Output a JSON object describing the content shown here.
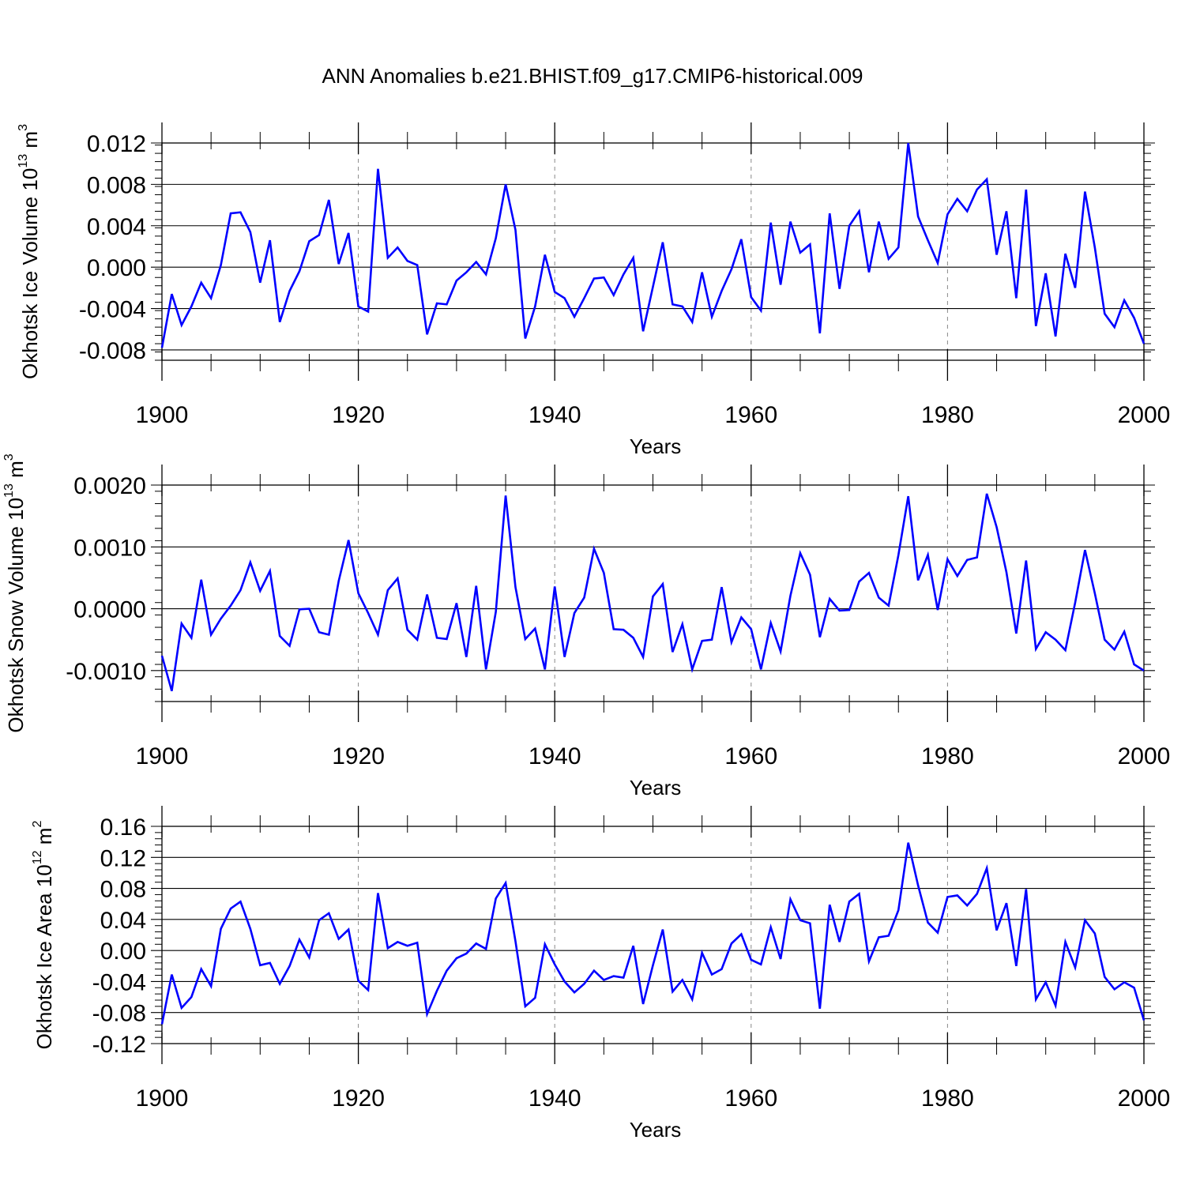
{
  "title": "ANN Anomalies b.e21.BHIST.f09_g17.CMIP6-historical.009",
  "line_color": "#0000ff",
  "chart_data": [
    {
      "type": "line",
      "ylabel": "Okhotsk Ice Volume 10",
      "ylabel_sup": "13",
      "ylabel_unit": "m",
      "ylabel_unit_sup": "3",
      "xlabel": "Years",
      "xlim": [
        1900,
        2000
      ],
      "ylim": [
        -0.009,
        0.012
      ],
      "xticks": [
        1900,
        1920,
        1940,
        1960,
        1980,
        2000
      ],
      "yticks": [
        -0.008,
        -0.004,
        0.0,
        0.004,
        0.008,
        0.012
      ],
      "ytick_labels": [
        "-0.008",
        "-0.004",
        "0.000",
        "0.004",
        "0.008",
        "0.012"
      ],
      "x_start": 1900,
      "values": [
        -0.0078,
        -0.0026,
        -0.0056,
        -0.0038,
        -0.0015,
        -0.003,
        0.0002,
        0.0052,
        0.0053,
        0.0034,
        -0.0015,
        0.0026,
        -0.0053,
        -0.0023,
        -0.0004,
        0.0025,
        0.0031,
        0.0065,
        0.0003,
        0.0033,
        -0.0038,
        -0.0043,
        0.0095,
        0.0009,
        0.0019,
        0.0006,
        0.0002,
        -0.0065,
        -0.0035,
        -0.0036,
        -0.0013,
        -0.0005,
        0.0005,
        -0.0007,
        0.0028,
        0.008,
        0.0036,
        -0.0069,
        -0.0038,
        0.0012,
        -0.0024,
        -0.003,
        -0.0048,
        -0.003,
        -0.0011,
        -0.001,
        -0.0027,
        -0.0007,
        0.0009,
        -0.0062,
        -0.0019,
        0.0024,
        -0.0036,
        -0.0038,
        -0.0053,
        -0.0005,
        -0.0048,
        -0.0023,
        -0.0002,
        0.0027,
        -0.0029,
        -0.0042,
        0.0043,
        -0.0017,
        0.0044,
        0.0014,
        0.0022,
        -0.0064,
        0.0052,
        -0.0021,
        0.004,
        0.0054,
        -0.0005,
        0.0044,
        0.0008,
        0.0019,
        0.012,
        0.0049,
        0.0026,
        0.0004,
        0.0051,
        0.0066,
        0.0054,
        0.0075,
        0.0085,
        0.0012,
        0.0054,
        -0.003,
        0.0075,
        -0.0057,
        -0.0006,
        -0.0067,
        0.0013,
        -0.002,
        0.0073,
        0.0019,
        -0.0045,
        -0.0058,
        -0.0032,
        -0.0049,
        -0.0074
      ]
    },
    {
      "type": "line",
      "ylabel": "Okhotsk Snow Volume 10",
      "ylabel_sup": "13",
      "ylabel_unit": "m",
      "ylabel_unit_sup": "3",
      "xlabel": "Years",
      "xlim": [
        1900,
        2000
      ],
      "ylim": [
        -0.0015,
        0.002
      ],
      "xticks": [
        1900,
        1920,
        1940,
        1960,
        1980,
        2000
      ],
      "yticks": [
        -0.001,
        0.0,
        0.001,
        0.002
      ],
      "ytick_labels": [
        "-0.0010",
        "0.0000",
        "0.0010",
        "0.0020"
      ],
      "x_start": 1900,
      "values": [
        -0.00076,
        -0.00133,
        -0.00024,
        -0.00047,
        0.00047,
        -0.00042,
        -0.00016,
        5e-05,
        0.0003,
        0.00075,
        0.00029,
        0.00061,
        -0.00044,
        -0.0006,
        -1e-05,
        0.0,
        -0.00038,
        -0.00042,
        0.00045,
        0.00111,
        0.00025,
        -7e-05,
        -0.00042,
        0.0003,
        0.00049,
        -0.00034,
        -0.0005,
        0.00023,
        -0.00047,
        -0.00049,
        9e-05,
        -0.00078,
        0.00037,
        -0.00098,
        -5e-05,
        0.00183,
        0.00035,
        -0.00049,
        -0.00032,
        -0.00098,
        0.00036,
        -0.00078,
        -7e-05,
        0.00018,
        0.00097,
        0.00058,
        -0.00033,
        -0.00034,
        -0.00047,
        -0.00078,
        0.0002,
        0.0004,
        -0.0007,
        -0.00025,
        -0.00098,
        -0.00052,
        -0.0005,
        0.00035,
        -0.00054,
        -0.00014,
        -0.00033,
        -0.00098,
        -0.00023,
        -0.00069,
        0.00021,
        0.0009,
        0.00055,
        -0.00046,
        0.00016,
        -3e-05,
        -2e-05,
        0.00044,
        0.00058,
        0.00018,
        5e-05,
        0.00087,
        0.00182,
        0.00046,
        0.00087,
        -2e-05,
        0.0008,
        0.00053,
        0.00079,
        0.00083,
        0.00186,
        0.00132,
        0.00059,
        -0.0004,
        0.00078,
        -0.00065,
        -0.00038,
        -0.0005,
        -0.00067,
        0.0001,
        0.00095,
        0.00025,
        -0.0005,
        -0.00066,
        -0.00037,
        -0.0009,
        -0.001
      ]
    },
    {
      "type": "line",
      "ylabel": "Okhotsk Ice Area 10",
      "ylabel_sup": "12",
      "ylabel_unit": "m",
      "ylabel_unit_sup": "2",
      "xlabel": "Years",
      "xlim": [
        1900,
        2000
      ],
      "ylim": [
        -0.12,
        0.16
      ],
      "xticks": [
        1900,
        1920,
        1940,
        1960,
        1980,
        2000
      ],
      "yticks": [
        -0.12,
        -0.08,
        -0.04,
        0.0,
        0.04,
        0.08,
        0.12,
        0.16
      ],
      "ytick_labels": [
        "-0.12",
        "-0.08",
        "-0.04",
        "0.00",
        "0.04",
        "0.08",
        "0.12",
        "0.16"
      ],
      "x_start": 1900,
      "values": [
        -0.095,
        -0.031,
        -0.074,
        -0.06,
        -0.024,
        -0.046,
        0.028,
        0.054,
        0.063,
        0.028,
        -0.019,
        -0.016,
        -0.043,
        -0.02,
        0.014,
        -0.009,
        0.039,
        0.048,
        0.015,
        0.027,
        -0.039,
        -0.051,
        0.074,
        0.003,
        0.011,
        0.006,
        0.01,
        -0.082,
        -0.052,
        -0.026,
        -0.01,
        -0.004,
        0.009,
        0.002,
        0.067,
        0.087,
        0.012,
        -0.072,
        -0.061,
        0.008,
        -0.018,
        -0.04,
        -0.054,
        -0.043,
        -0.026,
        -0.038,
        -0.033,
        -0.035,
        0.006,
        -0.069,
        -0.019,
        0.027,
        -0.053,
        -0.038,
        -0.063,
        -0.003,
        -0.031,
        -0.024,
        0.009,
        0.021,
        -0.012,
        -0.018,
        0.03,
        -0.011,
        0.066,
        0.039,
        0.035,
        -0.075,
        0.059,
        0.011,
        0.063,
        0.073,
        -0.014,
        0.017,
        0.019,
        0.052,
        0.139,
        0.084,
        0.036,
        0.023,
        0.069,
        0.071,
        0.058,
        0.073,
        0.106,
        0.026,
        0.061,
        -0.02,
        0.079,
        -0.063,
        -0.041,
        -0.071,
        0.011,
        -0.022,
        0.039,
        0.022,
        -0.034,
        -0.05,
        -0.041,
        -0.048,
        -0.09
      ]
    }
  ]
}
